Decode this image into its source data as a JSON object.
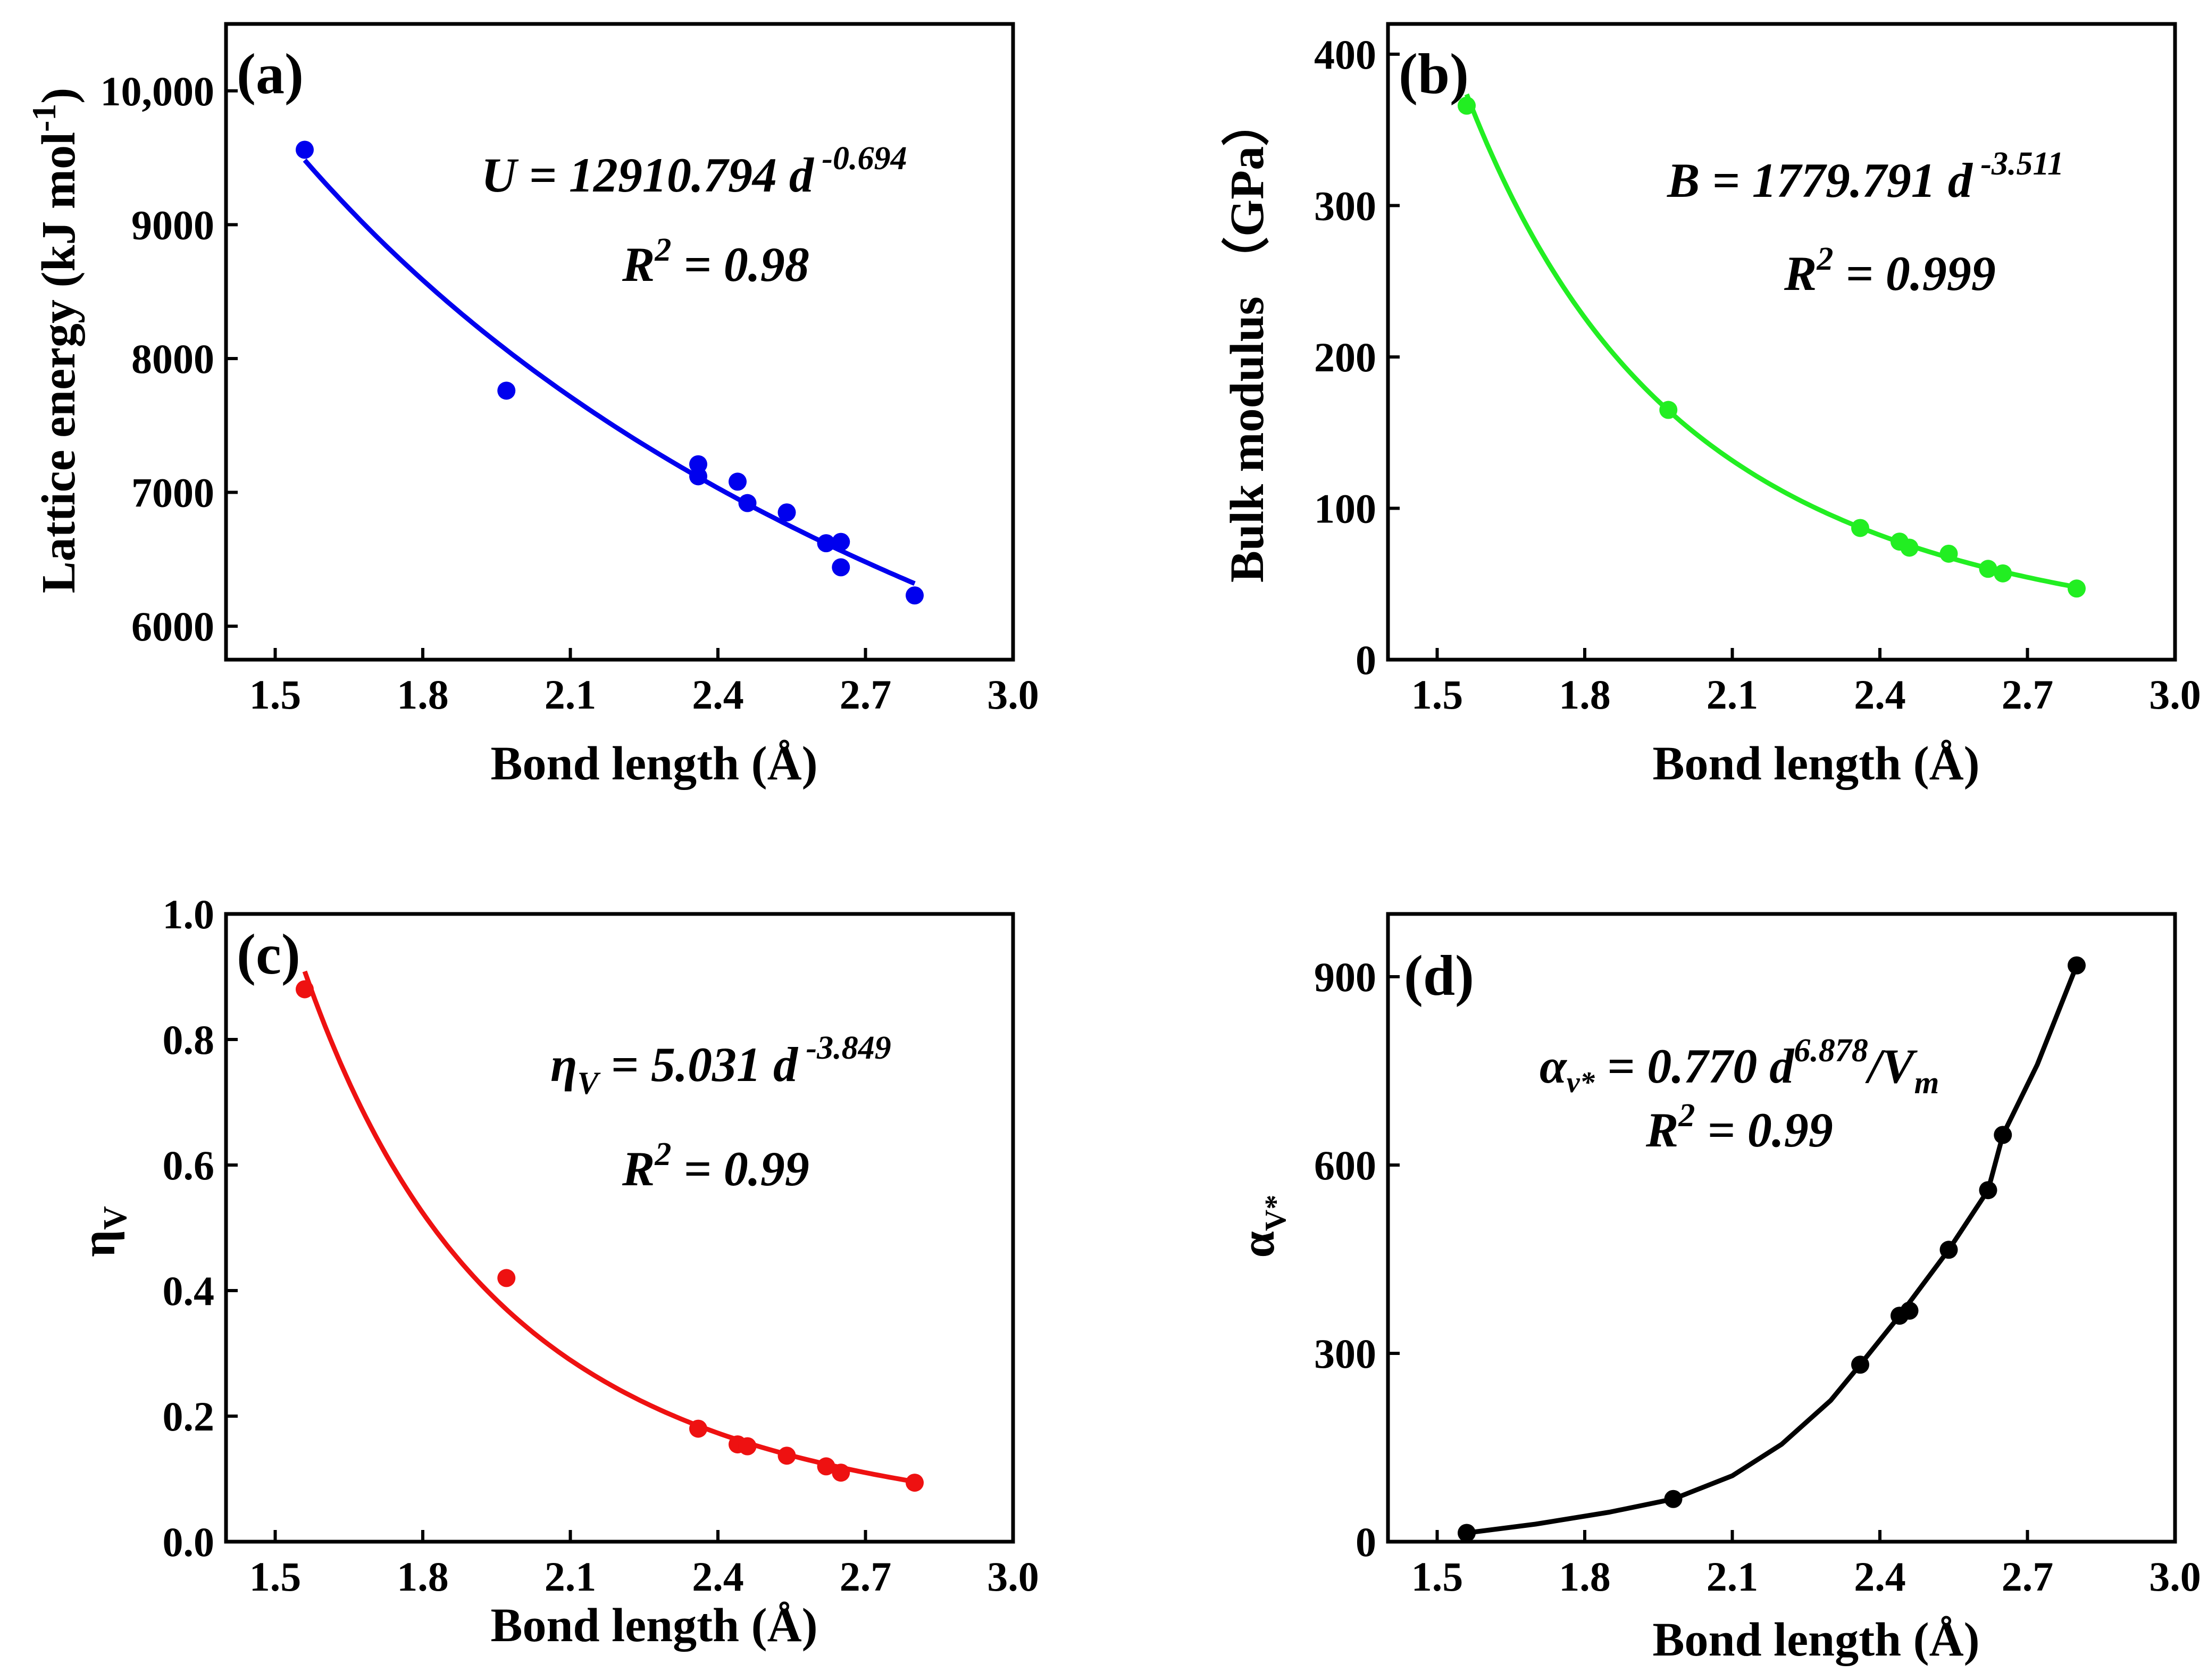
{
  "chart_data": [
    {
      "type": "scatter",
      "panel": "(a)",
      "color": "#0000ee",
      "xlabel": "Bond length (Å)",
      "ylabel": "Lattice energy (kJ mol",
      "ylabel_sup": "-1",
      "ylabel_end": ")",
      "xlim": [
        1.4,
        3.0
      ],
      "ylim": [
        5750,
        10500
      ],
      "xticks": [
        1.5,
        1.8,
        2.1,
        2.4,
        2.7,
        3.0
      ],
      "xtick_labels": [
        "1.5",
        "1.8",
        "2.1",
        "2.4",
        "2.7",
        "3.0"
      ],
      "yticks": [
        6000,
        7000,
        8000,
        9000,
        10000
      ],
      "ytick_labels": [
        "6000",
        "7000",
        "8000",
        "9000",
        "10,000"
      ],
      "x": [
        1.56,
        1.97,
        2.36,
        2.36,
        2.44,
        2.46,
        2.54,
        2.62,
        2.65,
        2.65,
        2.8
      ],
      "y": [
        9560,
        7760,
        7210,
        7120,
        7080,
        6920,
        6850,
        6620,
        6630,
        6440,
        6230
      ],
      "fit": {
        "a": 12910.794,
        "b": -0.694,
        "x_range": [
          1.56,
          2.8
        ]
      },
      "equation": {
        "lhs": "U",
        "rhs": " = 12910.794 ",
        "var": "d",
        "exp": " -0.694"
      },
      "r2": {
        "r": "R",
        "sup": "2",
        "val": " = 0.98"
      }
    },
    {
      "type": "scatter",
      "panel": "(b)",
      "color": "#22ee22",
      "xlabel": "Bond length (Å)",
      "ylabel": "Bulk modulus （GPa）",
      "xlim": [
        1.4,
        3.0
      ],
      "ylim": [
        0,
        420
      ],
      "xticks": [
        1.5,
        1.8,
        2.1,
        2.4,
        2.7,
        3.0
      ],
      "xtick_labels": [
        "1.5",
        "1.8",
        "2.1",
        "2.4",
        "2.7",
        "3.0"
      ],
      "yticks": [
        0,
        100,
        200,
        300,
        400
      ],
      "ytick_labels": [
        "0",
        "100",
        "200",
        "300",
        "400"
      ],
      "x": [
        1.56,
        1.97,
        2.36,
        2.44,
        2.46,
        2.54,
        2.62,
        2.65,
        2.8
      ],
      "y": [
        366,
        165,
        87,
        78,
        74,
        70,
        60,
        57,
        47
      ],
      "fit": {
        "a": 1779.791,
        "b": -3.511,
        "x_range": [
          1.56,
          2.8
        ]
      },
      "equation": {
        "lhs": "B",
        "rhs": " = 1779.791 ",
        "var": "d",
        "exp": " -3.511"
      },
      "r2": {
        "r": "R",
        "sup": "2",
        "val": " = 0.999"
      }
    },
    {
      "type": "scatter",
      "panel": "(c)",
      "color": "#ee1111",
      "xlabel": "Bond length (Å)",
      "ylabel": "η",
      "ylabel_sub": "V",
      "xlim": [
        1.4,
        3.0
      ],
      "ylim": [
        0,
        1.0
      ],
      "xticks": [
        1.5,
        1.8,
        2.1,
        2.4,
        2.7,
        3.0
      ],
      "xtick_labels": [
        "1.5",
        "1.8",
        "2.1",
        "2.4",
        "2.7",
        "3.0"
      ],
      "yticks": [
        0,
        0.2,
        0.4,
        0.6,
        0.8,
        1.0
      ],
      "ytick_labels": [
        "0.0",
        "0.2",
        "0.4",
        "0.6",
        "0.8",
        "1.0"
      ],
      "x": [
        1.56,
        1.97,
        2.36,
        2.44,
        2.46,
        2.54,
        2.62,
        2.65,
        2.8
      ],
      "y": [
        0.88,
        0.42,
        0.18,
        0.155,
        0.152,
        0.137,
        0.12,
        0.11,
        0.094
      ],
      "fit": {
        "a": 5.031,
        "b": -3.849,
        "x_range": [
          1.56,
          2.8
        ]
      },
      "equation": {
        "lhs": "η",
        "lhs_sub": "V",
        "rhs": " = 5.031 ",
        "var": "d",
        "exp": " -3.849"
      },
      "r2": {
        "r": "R",
        "sup": "2",
        "val": " = 0.99"
      }
    },
    {
      "type": "scatter",
      "panel": "(d)",
      "color": "#000000",
      "xlabel": "Bond length (Å)",
      "ylabel": "α",
      "ylabel_sub": "V*",
      "xlim": [
        1.4,
        3.0
      ],
      "ylim": [
        0,
        1000
      ],
      "xticks": [
        1.5,
        1.8,
        2.1,
        2.4,
        2.7,
        3.0
      ],
      "xtick_labels": [
        "1.5",
        "1.8",
        "2.1",
        "2.4",
        "2.7",
        "3.0"
      ],
      "yticks": [
        0,
        300,
        600,
        900
      ],
      "ytick_labels": [
        "0",
        "300",
        "600",
        "900"
      ],
      "x": [
        1.56,
        1.98,
        2.36,
        2.44,
        2.46,
        2.54,
        2.62,
        2.65,
        2.8
      ],
      "y": [
        14,
        68,
        282,
        360,
        368,
        465,
        560,
        648,
        918
      ],
      "fit_points": [
        [
          1.56,
          14
        ],
        [
          1.7,
          28
        ],
        [
          1.85,
          47
        ],
        [
          1.98,
          68
        ],
        [
          2.1,
          105
        ],
        [
          2.2,
          155
        ],
        [
          2.3,
          225
        ],
        [
          2.36,
          282
        ],
        [
          2.44,
          360
        ],
        [
          2.54,
          465
        ],
        [
          2.62,
          560
        ],
        [
          2.65,
          648
        ],
        [
          2.72,
          760
        ],
        [
          2.8,
          918
        ]
      ],
      "equation": {
        "lhs": "α",
        "lhs_sub": "v*",
        "rhs": " = 0.770 ",
        "var": "d",
        "exp": "6.878",
        "tail": "/V",
        "tail_sub": "m"
      },
      "r2": {
        "r": "R",
        "sup": "2",
        "val": " = 0.99"
      }
    }
  ]
}
